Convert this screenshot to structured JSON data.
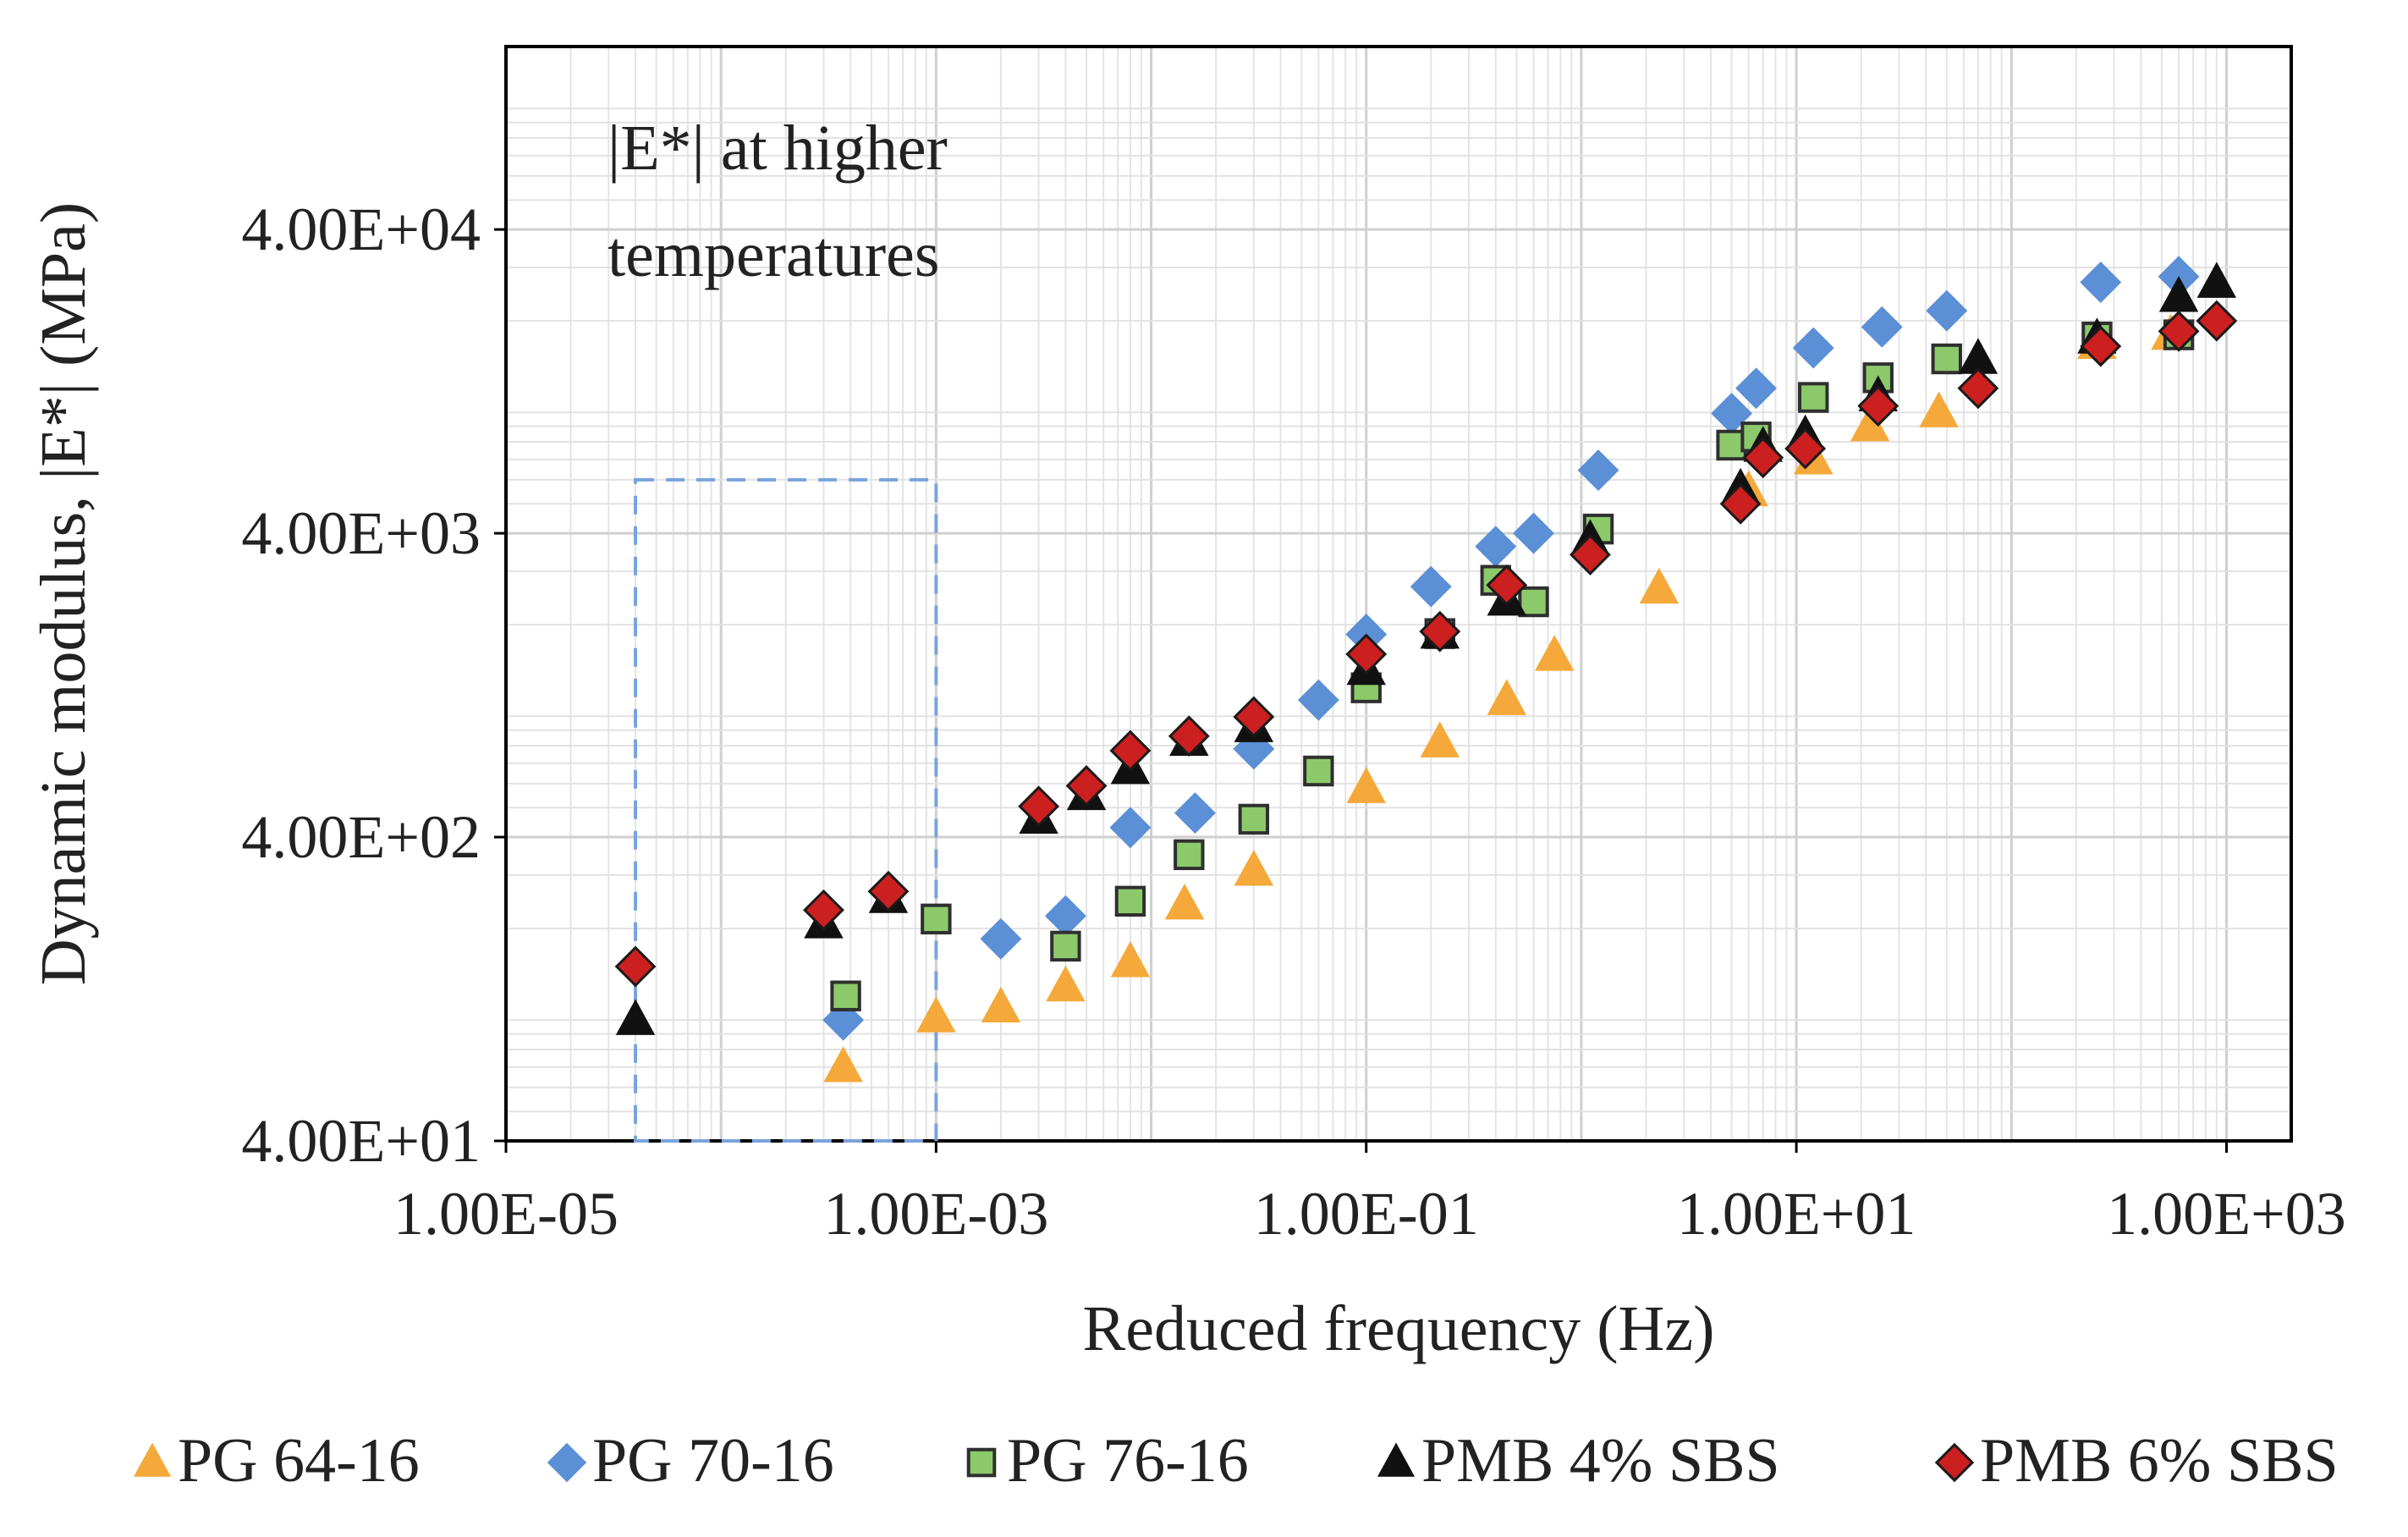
{
  "chart_data": {
    "type": "scatter",
    "title": "",
    "xlabel": "Reduced frequency (Hz)",
    "ylabel": "Dynamic modulus, |E*| (MPa)",
    "x_scale": "log",
    "y_scale": "log",
    "xlim": [
      1e-05,
      2000
    ],
    "ylim": [
      40,
      160000
    ],
    "x_ticks": [
      1e-05,
      0.001,
      0.1,
      10,
      1000
    ],
    "x_tick_labels": [
      "1.00E-05",
      "1.00E-03",
      "1.00E-01",
      "1.00E+01",
      "1.00E+03"
    ],
    "y_ticks": [
      40,
      400,
      4000,
      40000
    ],
    "y_tick_labels": [
      "4.00E+01",
      "4.00E+02",
      "4.00E+03",
      "4.00E+04"
    ],
    "grid": true,
    "legend_position": "bottom",
    "annotation": {
      "line1": "|E*| at higher",
      "line2": "temperatures",
      "box_x_range": [
        4e-05,
        0.001
      ],
      "box_y_range": [
        40,
        6000
      ]
    },
    "series": [
      {
        "name": "PG 64-16",
        "marker": "triangle",
        "fill": "#f4a93a",
        "stroke": "#f4a93a",
        "points": [
          [
            0.00037,
            70
          ],
          [
            0.001,
            102
          ],
          [
            0.002,
            110
          ],
          [
            0.004,
            129
          ],
          [
            0.008,
            155
          ],
          [
            0.0143,
            240
          ],
          [
            0.03,
            310
          ],
          [
            0.1,
            580
          ],
          [
            0.22,
            820
          ],
          [
            0.45,
            1130
          ],
          [
            0.75,
            1580
          ],
          [
            2.3,
            2630
          ],
          [
            6.0,
            5500
          ],
          [
            12.0,
            7000
          ],
          [
            22.0,
            9000
          ],
          [
            46.0,
            10000
          ],
          [
            250.0,
            16800
          ],
          [
            550.0,
            18000
          ]
        ]
      },
      {
        "name": "PG 70-16",
        "marker": "diamond",
        "fill": "#5b8fd6",
        "stroke": "#5b8fd6",
        "points": [
          [
            0.00037,
            100
          ],
          [
            0.002,
            185
          ],
          [
            0.004,
            220
          ],
          [
            0.008,
            430
          ],
          [
            0.016,
            480
          ],
          [
            0.03,
            780
          ],
          [
            0.06,
            1130
          ],
          [
            0.1,
            1860
          ],
          [
            0.2,
            2670
          ],
          [
            0.4,
            3620
          ],
          [
            0.6,
            4000
          ],
          [
            1.2,
            6450
          ],
          [
            5.0,
            9920
          ],
          [
            6.5,
            12000
          ],
          [
            12.0,
            16300
          ],
          [
            25.0,
            19100
          ],
          [
            50.0,
            21600
          ],
          [
            260.0,
            26800
          ],
          [
            600.0,
            28000
          ]
        ]
      },
      {
        "name": "PG 76-16",
        "marker": "square",
        "fill": "#8cc96b",
        "stroke": "#2f2f2f",
        "points": [
          [
            0.00038,
            120
          ],
          [
            0.001,
            215
          ],
          [
            0.004,
            175
          ],
          [
            0.008,
            246
          ],
          [
            0.015,
            350
          ],
          [
            0.03,
            458
          ],
          [
            0.06,
            660
          ],
          [
            0.1,
            1240
          ],
          [
            0.22,
            1870
          ],
          [
            0.4,
            2800
          ],
          [
            0.6,
            2380
          ],
          [
            1.2,
            4130
          ],
          [
            5.0,
            7800
          ],
          [
            6.5,
            8300
          ],
          [
            12.0,
            11200
          ],
          [
            24.0,
            13000
          ],
          [
            50.0,
            15000
          ],
          [
            250.0,
            17700
          ],
          [
            600.0,
            18000
          ]
        ]
      },
      {
        "name": "PMB 4% SBS",
        "marker": "triangle",
        "fill": "#111111",
        "stroke": "#111111",
        "points": [
          [
            4e-05,
            100
          ],
          [
            0.0003,
            208
          ],
          [
            0.0006,
            252
          ],
          [
            0.003,
            460
          ],
          [
            0.005,
            550
          ],
          [
            0.008,
            670
          ],
          [
            0.015,
            830
          ],
          [
            0.03,
            920
          ],
          [
            0.1,
            1420
          ],
          [
            0.22,
            1870
          ],
          [
            0.45,
            2400
          ],
          [
            1.1,
            3800
          ],
          [
            5.5,
            5600
          ],
          [
            7.0,
            7700
          ],
          [
            11.0,
            8400
          ],
          [
            24.0,
            11300
          ],
          [
            70.0,
            15000
          ],
          [
            250.0,
            17500
          ],
          [
            600.0,
            24000
          ],
          [
            900.0,
            26700
          ]
        ]
      },
      {
        "name": "PMB 6% SBS",
        "marker": "diamond",
        "fill": "#cc1f1f",
        "stroke": "#1a1a1a",
        "points": [
          [
            4e-05,
            150
          ],
          [
            0.0003,
            230
          ],
          [
            0.0006,
            265
          ],
          [
            0.003,
            505
          ],
          [
            0.005,
            590
          ],
          [
            0.008,
            770
          ],
          [
            0.015,
            860
          ],
          [
            0.03,
            995
          ],
          [
            0.1,
            1600
          ],
          [
            0.22,
            1900
          ],
          [
            0.45,
            2700
          ],
          [
            1.1,
            3400
          ],
          [
            5.5,
            5000
          ],
          [
            7.0,
            7100
          ],
          [
            11.0,
            7600
          ],
          [
            24.0,
            10500
          ],
          [
            70.0,
            12000
          ],
          [
            260.0,
            16500
          ],
          [
            600.0,
            18500
          ],
          [
            900.0,
            20000
          ]
        ]
      }
    ]
  }
}
